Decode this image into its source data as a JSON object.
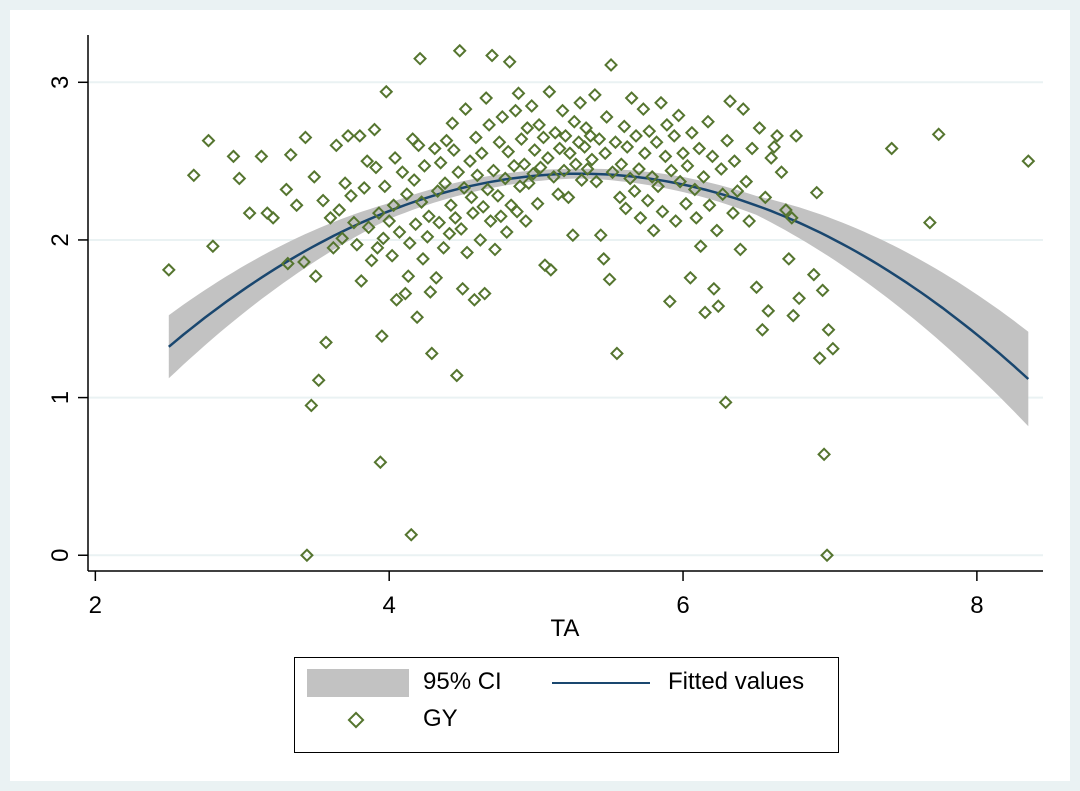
{
  "chart_data": {
    "type": "scatter",
    "title": "",
    "xlabel": "TA",
    "ylabel": "",
    "xlim": [
      1.95,
      8.45
    ],
    "ylim": [
      -0.1,
      3.3
    ],
    "x_ticks": [
      2,
      4,
      6,
      8
    ],
    "y_ticks": [
      0,
      1,
      2,
      3
    ],
    "grid": true,
    "legend": {
      "position": "bottom",
      "entries": [
        "95% CI",
        "Fitted values",
        "GY"
      ]
    },
    "series": [
      {
        "name": "GY",
        "marker": "hollow-diamond",
        "color": "#55752f",
        "points": [
          [
            2.5,
            1.81
          ],
          [
            2.67,
            2.41
          ],
          [
            2.77,
            2.63
          ],
          [
            2.8,
            1.96
          ],
          [
            2.94,
            2.53
          ],
          [
            2.98,
            2.39
          ],
          [
            3.05,
            2.17
          ],
          [
            3.13,
            2.53
          ],
          [
            3.17,
            2.17
          ],
          [
            3.21,
            2.14
          ],
          [
            3.3,
            2.32
          ],
          [
            3.31,
            1.85
          ],
          [
            3.33,
            2.54
          ],
          [
            3.37,
            2.22
          ],
          [
            3.42,
            1.86
          ],
          [
            3.43,
            2.65
          ],
          [
            3.44,
            0.0
          ],
          [
            3.47,
            0.95
          ],
          [
            3.49,
            2.4
          ],
          [
            3.5,
            1.77
          ],
          [
            3.52,
            1.11
          ],
          [
            3.55,
            2.25
          ],
          [
            3.57,
            1.35
          ],
          [
            3.6,
            2.14
          ],
          [
            3.62,
            1.95
          ],
          [
            3.64,
            2.6
          ],
          [
            3.66,
            2.19
          ],
          [
            3.68,
            2.01
          ],
          [
            3.7,
            2.36
          ],
          [
            3.72,
            2.66
          ],
          [
            3.74,
            2.28
          ],
          [
            3.76,
            2.11
          ],
          [
            3.78,
            1.97
          ],
          [
            3.8,
            2.66
          ],
          [
            3.81,
            1.74
          ],
          [
            3.83,
            2.33
          ],
          [
            3.85,
            2.5
          ],
          [
            3.86,
            2.08
          ],
          [
            3.88,
            1.87
          ],
          [
            3.9,
            2.7
          ],
          [
            3.91,
            2.46
          ],
          [
            3.92,
            1.95
          ],
          [
            3.93,
            2.17
          ],
          [
            3.94,
            0.59
          ],
          [
            3.95,
            1.39
          ],
          [
            3.96,
            2.01
          ],
          [
            3.97,
            2.34
          ],
          [
            3.98,
            2.94
          ],
          [
            4.0,
            2.12
          ],
          [
            4.02,
            1.9
          ],
          [
            4.03,
            2.22
          ],
          [
            4.04,
            2.52
          ],
          [
            4.05,
            1.62
          ],
          [
            4.07,
            2.05
          ],
          [
            4.09,
            2.43
          ],
          [
            4.11,
            1.66
          ],
          [
            4.12,
            2.29
          ],
          [
            4.13,
            1.77
          ],
          [
            4.14,
            1.98
          ],
          [
            4.15,
            0.13
          ],
          [
            4.16,
            2.64
          ],
          [
            4.17,
            2.38
          ],
          [
            4.18,
            2.1
          ],
          [
            4.19,
            1.51
          ],
          [
            4.2,
            2.6
          ],
          [
            4.21,
            3.15
          ],
          [
            4.22,
            2.24
          ],
          [
            4.23,
            1.88
          ],
          [
            4.24,
            2.47
          ],
          [
            4.26,
            2.02
          ],
          [
            4.27,
            2.15
          ],
          [
            4.28,
            1.67
          ],
          [
            4.29,
            1.28
          ],
          [
            4.31,
            2.58
          ],
          [
            4.32,
            1.76
          ],
          [
            4.33,
            2.31
          ],
          [
            4.34,
            2.11
          ],
          [
            4.35,
            2.49
          ],
          [
            4.37,
            1.95
          ],
          [
            4.38,
            2.36
          ],
          [
            4.39,
            2.63
          ],
          [
            4.41,
            2.04
          ],
          [
            4.42,
            2.22
          ],
          [
            4.43,
            2.74
          ],
          [
            4.44,
            2.57
          ],
          [
            4.45,
            2.14
          ],
          [
            4.46,
            1.14
          ],
          [
            4.47,
            2.43
          ],
          [
            4.48,
            3.2
          ],
          [
            4.49,
            2.07
          ],
          [
            4.5,
            1.69
          ],
          [
            4.51,
            2.33
          ],
          [
            4.52,
            2.83
          ],
          [
            4.53,
            1.92
          ],
          [
            4.55,
            2.5
          ],
          [
            4.56,
            2.27
          ],
          [
            4.57,
            2.17
          ],
          [
            4.58,
            1.62
          ],
          [
            4.59,
            2.65
          ],
          [
            4.6,
            2.41
          ],
          [
            4.62,
            2.0
          ],
          [
            4.63,
            2.55
          ],
          [
            4.64,
            2.21
          ],
          [
            4.65,
            1.66
          ],
          [
            4.66,
            2.9
          ],
          [
            4.67,
            2.32
          ],
          [
            4.68,
            2.73
          ],
          [
            4.69,
            2.12
          ],
          [
            4.7,
            3.17
          ],
          [
            4.71,
            2.44
          ],
          [
            4.72,
            1.94
          ],
          [
            4.74,
            2.28
          ],
          [
            4.75,
            2.62
          ],
          [
            4.76,
            2.15
          ],
          [
            4.77,
            2.78
          ],
          [
            4.79,
            2.39
          ],
          [
            4.8,
            2.05
          ],
          [
            4.81,
            2.56
          ],
          [
            4.82,
            3.13
          ],
          [
            4.83,
            2.22
          ],
          [
            4.85,
            2.47
          ],
          [
            4.86,
            2.82
          ],
          [
            4.87,
            2.18
          ],
          [
            4.88,
            2.93
          ],
          [
            4.89,
            2.34
          ],
          [
            4.9,
            2.64
          ],
          [
            4.92,
            2.48
          ],
          [
            4.93,
            2.12
          ],
          [
            4.94,
            2.71
          ],
          [
            4.95,
            2.36
          ],
          [
            4.97,
            2.85
          ],
          [
            4.98,
            2.42
          ],
          [
            4.99,
            2.57
          ],
          [
            5.01,
            2.23
          ],
          [
            5.02,
            2.73
          ],
          [
            5.03,
            2.46
          ],
          [
            5.05,
            2.65
          ],
          [
            5.06,
            1.84
          ],
          [
            5.08,
            2.52
          ],
          [
            5.09,
            2.94
          ],
          [
            5.1,
            1.81
          ],
          [
            5.12,
            2.4
          ],
          [
            5.13,
            2.68
          ],
          [
            5.15,
            2.29
          ],
          [
            5.16,
            2.58
          ],
          [
            5.18,
            2.82
          ],
          [
            5.19,
            2.44
          ],
          [
            5.2,
            2.66
          ],
          [
            5.22,
            2.27
          ],
          [
            5.23,
            2.55
          ],
          [
            5.25,
            2.03
          ],
          [
            5.26,
            2.75
          ],
          [
            5.27,
            2.48
          ],
          [
            5.29,
            2.62
          ],
          [
            5.3,
            2.87
          ],
          [
            5.31,
            2.38
          ],
          [
            5.33,
            2.59
          ],
          [
            5.34,
            2.71
          ],
          [
            5.35,
            2.45
          ],
          [
            5.37,
            2.66
          ],
          [
            5.38,
            2.51
          ],
          [
            5.4,
            2.92
          ],
          [
            5.41,
            2.37
          ],
          [
            5.43,
            2.64
          ],
          [
            5.44,
            2.03
          ],
          [
            5.46,
            1.88
          ],
          [
            5.47,
            2.55
          ],
          [
            5.48,
            2.78
          ],
          [
            5.5,
            1.75
          ],
          [
            5.51,
            3.11
          ],
          [
            5.52,
            2.43
          ],
          [
            5.54,
            2.62
          ],
          [
            5.55,
            1.28
          ],
          [
            5.57,
            2.27
          ],
          [
            5.58,
            2.48
          ],
          [
            5.6,
            2.72
          ],
          [
            5.61,
            2.2
          ],
          [
            5.62,
            2.59
          ],
          [
            5.64,
            2.39
          ],
          [
            5.65,
            2.9
          ],
          [
            5.67,
            2.31
          ],
          [
            5.68,
            2.66
          ],
          [
            5.7,
            2.45
          ],
          [
            5.71,
            2.14
          ],
          [
            5.73,
            2.83
          ],
          [
            5.74,
            2.55
          ],
          [
            5.76,
            2.25
          ],
          [
            5.77,
            2.69
          ],
          [
            5.79,
            2.4
          ],
          [
            5.8,
            2.06
          ],
          [
            5.82,
            2.62
          ],
          [
            5.83,
            2.34
          ],
          [
            5.85,
            2.87
          ],
          [
            5.86,
            2.18
          ],
          [
            5.88,
            2.53
          ],
          [
            5.89,
            2.73
          ],
          [
            5.91,
            1.61
          ],
          [
            5.92,
            2.44
          ],
          [
            5.94,
            2.66
          ],
          [
            5.95,
            2.12
          ],
          [
            5.97,
            2.79
          ],
          [
            5.98,
            2.37
          ],
          [
            6.0,
            2.55
          ],
          [
            6.02,
            2.23
          ],
          [
            6.03,
            2.47
          ],
          [
            6.05,
            1.76
          ],
          [
            6.06,
            2.68
          ],
          [
            6.08,
            2.32
          ],
          [
            6.09,
            2.14
          ],
          [
            6.11,
            2.58
          ],
          [
            6.12,
            1.96
          ],
          [
            6.14,
            2.4
          ],
          [
            6.15,
            1.54
          ],
          [
            6.17,
            2.75
          ],
          [
            6.18,
            2.22
          ],
          [
            6.2,
            2.53
          ],
          [
            6.21,
            1.69
          ],
          [
            6.23,
            2.06
          ],
          [
            6.24,
            1.58
          ],
          [
            6.26,
            2.45
          ],
          [
            6.27,
            2.29
          ],
          [
            6.29,
            0.97
          ],
          [
            6.3,
            2.63
          ],
          [
            6.32,
            2.88
          ],
          [
            6.34,
            2.17
          ],
          [
            6.35,
            2.5
          ],
          [
            6.37,
            2.31
          ],
          [
            6.39,
            1.94
          ],
          [
            6.41,
            2.83
          ],
          [
            6.43,
            2.37
          ],
          [
            6.45,
            2.12
          ],
          [
            6.47,
            2.58
          ],
          [
            6.5,
            1.7
          ],
          [
            6.52,
            2.71
          ],
          [
            6.54,
            1.43
          ],
          [
            6.56,
            2.27
          ],
          [
            6.58,
            1.55
          ],
          [
            6.6,
            2.52
          ],
          [
            6.62,
            2.59
          ],
          [
            6.64,
            2.66
          ],
          [
            6.67,
            2.43
          ],
          [
            6.7,
            2.19
          ],
          [
            6.72,
            1.88
          ],
          [
            6.74,
            2.14
          ],
          [
            6.75,
            1.52
          ],
          [
            6.77,
            2.66
          ],
          [
            6.79,
            1.63
          ],
          [
            6.89,
            1.78
          ],
          [
            6.91,
            2.3
          ],
          [
            6.93,
            1.25
          ],
          [
            6.95,
            1.68
          ],
          [
            6.96,
            0.64
          ],
          [
            6.98,
            0.0
          ],
          [
            6.99,
            1.43
          ],
          [
            7.02,
            1.31
          ],
          [
            7.42,
            2.58
          ],
          [
            7.68,
            2.11
          ],
          [
            7.74,
            2.67
          ],
          [
            8.35,
            2.5
          ]
        ]
      },
      {
        "name": "Fitted values",
        "color": "#1a476f",
        "quadratic": {
          "a": -0.14,
          "peak_x": 5.3,
          "peak_y": 2.42
        },
        "x_range": [
          2.5,
          8.35
        ]
      },
      {
        "name": "95% CI",
        "color": "#c2c2c2",
        "halfwidth_at": {
          "x": [
            2.5,
            4.0,
            5.3,
            6.5,
            8.35
          ],
          "hw": [
            0.2,
            0.05,
            0.03,
            0.06,
            0.3
          ]
        }
      }
    ]
  }
}
